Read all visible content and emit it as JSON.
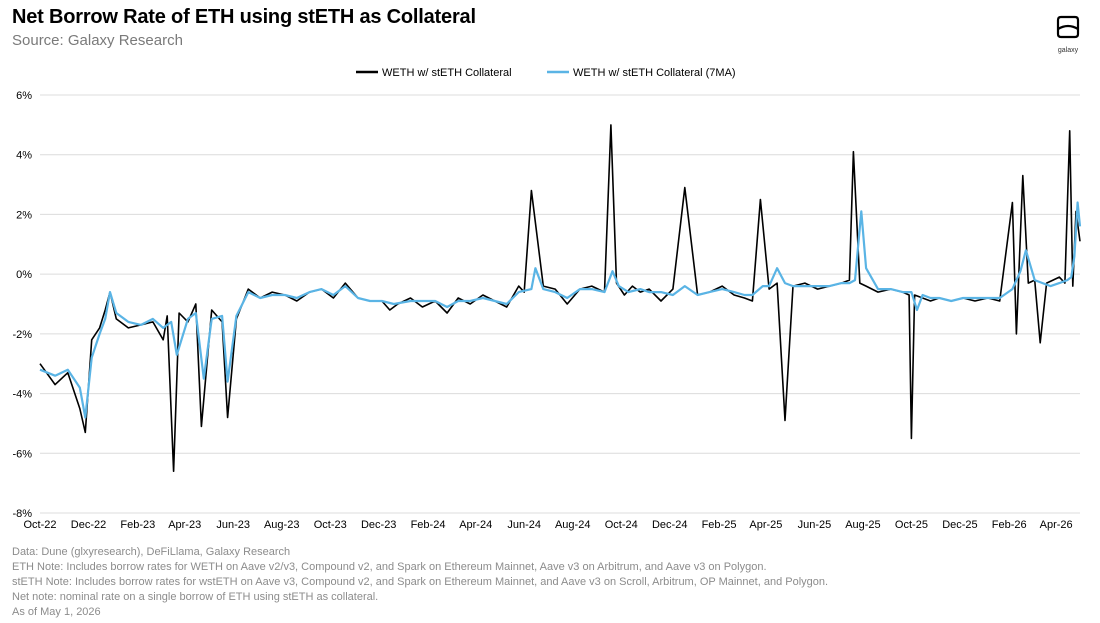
{
  "header": {
    "title": "Net Borrow Rate of ETH using stETH as Collateral",
    "subtitle": "Source: Galaxy Research"
  },
  "logo": {
    "text": "galaxy",
    "icon": "galaxy-logo-icon"
  },
  "notes": [
    "Data: Dune (glxyresearch), DeFiLlama, Galaxy Research",
    "ETH Note: Includes borrow rates for WETH on Aave v2/v3, Compound v2, and Spark on Ethereum Mainnet, Aave v3 on Arbitrum, and Aave v3 on Polygon.",
    "stETH Note: Includes  borrow rates for wstETH on Aave v3, Compound v2, and  Spark on Ethereum Mainnet, and Aave v3 on Scroll, Arbitrum, OP Mainnet, and Polygon.",
    "Net note: nominal rate on a single borrow of ETH using stETH as collateral.",
    "As of May 1, 2026"
  ],
  "chart_data": {
    "type": "line",
    "title": "Net Borrow Rate of ETH using stETH as Collateral",
    "xlabel": "",
    "ylabel": "",
    "ylim": [
      -8,
      6
    ],
    "yticks": [
      -8,
      -6,
      -4,
      -2,
      0,
      2,
      4,
      6
    ],
    "ytick_labels": [
      "-8%",
      "-6%",
      "-4%",
      "-2%",
      "0%",
      "2%",
      "4%",
      "6%"
    ],
    "xlim": [
      "2022-10-01",
      "2026-05-01"
    ],
    "xtick_labels": [
      "Oct-22",
      "Dec-22",
      "Feb-23",
      "Apr-23",
      "Jun-23",
      "Aug-23",
      "Oct-23",
      "Dec-23",
      "Feb-24",
      "Apr-24",
      "Jun-24",
      "Aug-24",
      "Oct-24",
      "Dec-24",
      "Feb-25",
      "Apr-25",
      "Jun-25",
      "Aug-25",
      "Oct-25",
      "Dec-25",
      "Feb-26",
      "Apr-26"
    ],
    "xtick_dates": [
      "2022-10-01",
      "2022-12-01",
      "2023-02-01",
      "2023-04-01",
      "2023-06-01",
      "2023-08-01",
      "2023-10-01",
      "2023-12-01",
      "2024-02-01",
      "2024-04-01",
      "2024-06-01",
      "2024-08-01",
      "2024-10-01",
      "2024-12-01",
      "2025-02-01",
      "2025-04-01",
      "2025-06-01",
      "2025-08-01",
      "2025-10-01",
      "2025-12-01",
      "2026-02-01",
      "2026-04-01"
    ],
    "grid": "horizontal",
    "legend_position": "top-center",
    "series": [
      {
        "name": "WETH w/ stETH Collateral",
        "color": "#000000",
        "x": [
          "2022-10-01",
          "2022-10-20",
          "2022-11-05",
          "2022-11-20",
          "2022-11-27",
          "2022-12-05",
          "2022-12-15",
          "2022-12-22",
          "2022-12-28",
          "2023-01-05",
          "2023-01-20",
          "2023-02-05",
          "2023-02-20",
          "2023-03-05",
          "2023-03-10",
          "2023-03-18",
          "2023-03-25",
          "2023-04-05",
          "2023-04-15",
          "2023-04-22",
          "2023-05-05",
          "2023-05-18",
          "2023-05-25",
          "2023-06-05",
          "2023-06-20",
          "2023-07-05",
          "2023-07-20",
          "2023-08-05",
          "2023-08-20",
          "2023-09-05",
          "2023-09-20",
          "2023-10-05",
          "2023-10-20",
          "2023-11-05",
          "2023-11-20",
          "2023-12-05",
          "2023-12-15",
          "2023-12-25",
          "2024-01-10",
          "2024-01-25",
          "2024-02-10",
          "2024-02-25",
          "2024-03-10",
          "2024-03-25",
          "2024-04-10",
          "2024-04-25",
          "2024-05-10",
          "2024-05-25",
          "2024-06-01",
          "2024-06-10",
          "2024-06-25",
          "2024-07-10",
          "2024-07-25",
          "2024-08-10",
          "2024-08-25",
          "2024-09-10",
          "2024-09-18",
          "2024-09-25",
          "2024-10-05",
          "2024-10-15",
          "2024-10-25",
          "2024-11-05",
          "2024-11-20",
          "2024-12-05",
          "2024-12-20",
          "2025-01-05",
          "2025-01-20",
          "2025-02-05",
          "2025-02-20",
          "2025-03-05",
          "2025-03-15",
          "2025-03-25",
          "2025-04-05",
          "2025-04-15",
          "2025-04-25",
          "2025-05-05",
          "2025-05-20",
          "2025-06-05",
          "2025-06-20",
          "2025-07-05",
          "2025-07-15",
          "2025-07-20",
          "2025-07-28",
          "2025-08-05",
          "2025-08-20",
          "2025-09-05",
          "2025-09-20",
          "2025-09-28",
          "2025-10-01",
          "2025-10-05",
          "2025-10-15",
          "2025-10-25",
          "2025-11-05",
          "2025-11-20",
          "2025-12-05",
          "2025-12-20",
          "2026-01-05",
          "2026-01-20",
          "2026-02-05",
          "2026-02-10",
          "2026-02-18",
          "2026-02-25",
          "2026-03-05",
          "2026-03-12",
          "2026-03-20",
          "2026-03-28",
          "2026-04-05",
          "2026-04-12",
          "2026-04-18",
          "2026-04-22",
          "2026-04-26",
          "2026-05-01"
        ],
        "values": [
          -3.0,
          -3.7,
          -3.3,
          -4.5,
          -5.3,
          -2.2,
          -1.8,
          -1.2,
          -0.6,
          -1.5,
          -1.8,
          -1.7,
          -1.6,
          -2.2,
          -1.4,
          -6.6,
          -1.3,
          -1.6,
          -1.0,
          -5.1,
          -1.2,
          -1.6,
          -4.8,
          -1.5,
          -0.5,
          -0.8,
          -0.6,
          -0.7,
          -0.9,
          -0.6,
          -0.5,
          -0.8,
          -0.3,
          -0.8,
          -0.9,
          -0.9,
          -1.2,
          -1.0,
          -0.8,
          -1.1,
          -0.9,
          -1.3,
          -0.8,
          -1.0,
          -0.7,
          -0.9,
          -1.1,
          -0.4,
          -0.6,
          2.8,
          -0.4,
          -0.5,
          -1.0,
          -0.5,
          -0.4,
          -0.6,
          5.0,
          -0.3,
          -0.7,
          -0.4,
          -0.6,
          -0.5,
          -0.9,
          -0.5,
          2.9,
          -0.7,
          -0.6,
          -0.4,
          -0.7,
          -0.8,
          -0.9,
          2.5,
          -0.5,
          -0.3,
          -4.9,
          -0.4,
          -0.3,
          -0.5,
          -0.4,
          -0.3,
          -0.2,
          4.1,
          -0.3,
          -0.4,
          -0.6,
          -0.5,
          -0.6,
          -0.7,
          -5.5,
          -0.7,
          -0.8,
          -0.9,
          -0.8,
          -0.9,
          -0.8,
          -0.9,
          -0.8,
          -0.9,
          2.4,
          -2.0,
          3.3,
          -0.3,
          -0.2,
          -2.3,
          -0.3,
          -0.2,
          -0.1,
          -0.3,
          4.8,
          -0.4,
          2.1,
          1.1
        ]
      },
      {
        "name": "WETH w/ stETH Collateral (7MA)",
        "color": "#5ab4e5",
        "x": [
          "2022-10-01",
          "2022-10-20",
          "2022-11-05",
          "2022-11-20",
          "2022-11-27",
          "2022-12-05",
          "2022-12-15",
          "2022-12-22",
          "2022-12-28",
          "2023-01-05",
          "2023-01-20",
          "2023-02-05",
          "2023-02-20",
          "2023-03-05",
          "2023-03-15",
          "2023-03-22",
          "2023-04-05",
          "2023-04-15",
          "2023-04-25",
          "2023-05-05",
          "2023-05-18",
          "2023-05-25",
          "2023-06-05",
          "2023-06-20",
          "2023-07-05",
          "2023-07-20",
          "2023-08-05",
          "2023-08-20",
          "2023-09-05",
          "2023-09-20",
          "2023-10-05",
          "2023-10-20",
          "2023-11-05",
          "2023-11-20",
          "2023-12-05",
          "2023-12-20",
          "2024-01-10",
          "2024-01-25",
          "2024-02-10",
          "2024-02-25",
          "2024-03-10",
          "2024-03-25",
          "2024-04-10",
          "2024-04-25",
          "2024-05-10",
          "2024-05-25",
          "2024-06-10",
          "2024-06-15",
          "2024-06-25",
          "2024-07-10",
          "2024-07-25",
          "2024-08-10",
          "2024-08-25",
          "2024-09-10",
          "2024-09-20",
          "2024-09-28",
          "2024-10-10",
          "2024-10-25",
          "2024-11-05",
          "2024-11-20",
          "2024-12-05",
          "2024-12-20",
          "2025-01-05",
          "2025-01-20",
          "2025-02-05",
          "2025-02-20",
          "2025-03-05",
          "2025-03-15",
          "2025-03-28",
          "2025-04-05",
          "2025-04-15",
          "2025-04-25",
          "2025-05-05",
          "2025-05-20",
          "2025-06-05",
          "2025-06-20",
          "2025-07-05",
          "2025-07-15",
          "2025-07-22",
          "2025-07-30",
          "2025-08-05",
          "2025-08-20",
          "2025-09-05",
          "2025-09-20",
          "2025-10-01",
          "2025-10-08",
          "2025-10-15",
          "2025-10-25",
          "2025-11-05",
          "2025-11-20",
          "2025-12-05",
          "2025-12-20",
          "2026-01-05",
          "2026-01-20",
          "2026-02-05",
          "2026-02-15",
          "2026-02-22",
          "2026-03-05",
          "2026-03-15",
          "2026-03-25",
          "2026-04-05",
          "2026-04-15",
          "2026-04-20",
          "2026-04-24",
          "2026-04-28",
          "2026-05-01"
        ],
        "values": [
          -3.2,
          -3.4,
          -3.2,
          -3.8,
          -4.8,
          -2.8,
          -2.0,
          -1.5,
          -0.6,
          -1.3,
          -1.6,
          -1.7,
          -1.5,
          -1.8,
          -1.6,
          -2.7,
          -1.5,
          -1.3,
          -3.5,
          -1.5,
          -1.4,
          -3.6,
          -1.4,
          -0.6,
          -0.8,
          -0.7,
          -0.7,
          -0.8,
          -0.6,
          -0.5,
          -0.7,
          -0.4,
          -0.8,
          -0.9,
          -0.9,
          -1.0,
          -0.9,
          -0.9,
          -0.9,
          -1.1,
          -0.9,
          -0.9,
          -0.8,
          -0.9,
          -1.0,
          -0.6,
          -0.5,
          0.2,
          -0.5,
          -0.6,
          -0.8,
          -0.5,
          -0.5,
          -0.6,
          0.1,
          -0.4,
          -0.6,
          -0.5,
          -0.6,
          -0.6,
          -0.7,
          -0.4,
          -0.7,
          -0.6,
          -0.5,
          -0.6,
          -0.7,
          -0.7,
          -0.4,
          -0.4,
          0.2,
          -0.3,
          -0.4,
          -0.4,
          -0.4,
          -0.4,
          -0.3,
          -0.3,
          -0.2,
          2.1,
          0.2,
          -0.5,
          -0.5,
          -0.6,
          -0.6,
          -1.2,
          -0.7,
          -0.8,
          -0.8,
          -0.9,
          -0.8,
          -0.8,
          -0.8,
          -0.8,
          -0.5,
          0.1,
          0.8,
          -0.2,
          -0.3,
          -0.4,
          -0.3,
          -0.2,
          -0.1,
          0.6,
          2.4,
          1.6
        ]
      }
    ]
  }
}
